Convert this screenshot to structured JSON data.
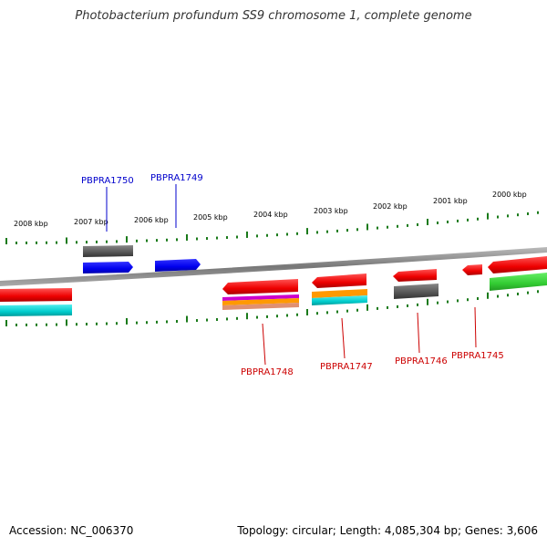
{
  "title": "Photobacterium profundum SS9 chromosome 1, complete genome",
  "footer": {
    "accession": "Accession: NC_006370",
    "summary": "Topology: circular; Length: 4,085,304 bp; Genes: 3,606"
  },
  "kbp_labels": [
    "2008 kbp",
    "2007 kbp",
    "2006 kbp",
    "2005 kbp",
    "2004 kbp",
    "2003 kbp",
    "2002 kbp",
    "2001 kbp",
    "2000 kbp"
  ],
  "gene_labels": [
    {
      "text": "PBPRA1750",
      "color": "#0000cc"
    },
    {
      "text": "PBPRA1749",
      "color": "#0000cc"
    },
    {
      "text": "PBPRA1748",
      "color": "#cc0000"
    },
    {
      "text": "PBPRA1747",
      "color": "#cc0000"
    },
    {
      "text": "PBPRA1746",
      "color": "#cc0000"
    },
    {
      "text": "PBPRA1745",
      "color": "#cc0000"
    }
  ],
  "colors": {
    "backbone": "#888888",
    "ticks": "#1a7a1a",
    "red": "#ee0000",
    "blue": "#0000ee",
    "gray": "#666666",
    "cyan": "#00cccc",
    "orange": "#ff9900",
    "magenta": "#cc00cc",
    "green": "#33cc33"
  }
}
